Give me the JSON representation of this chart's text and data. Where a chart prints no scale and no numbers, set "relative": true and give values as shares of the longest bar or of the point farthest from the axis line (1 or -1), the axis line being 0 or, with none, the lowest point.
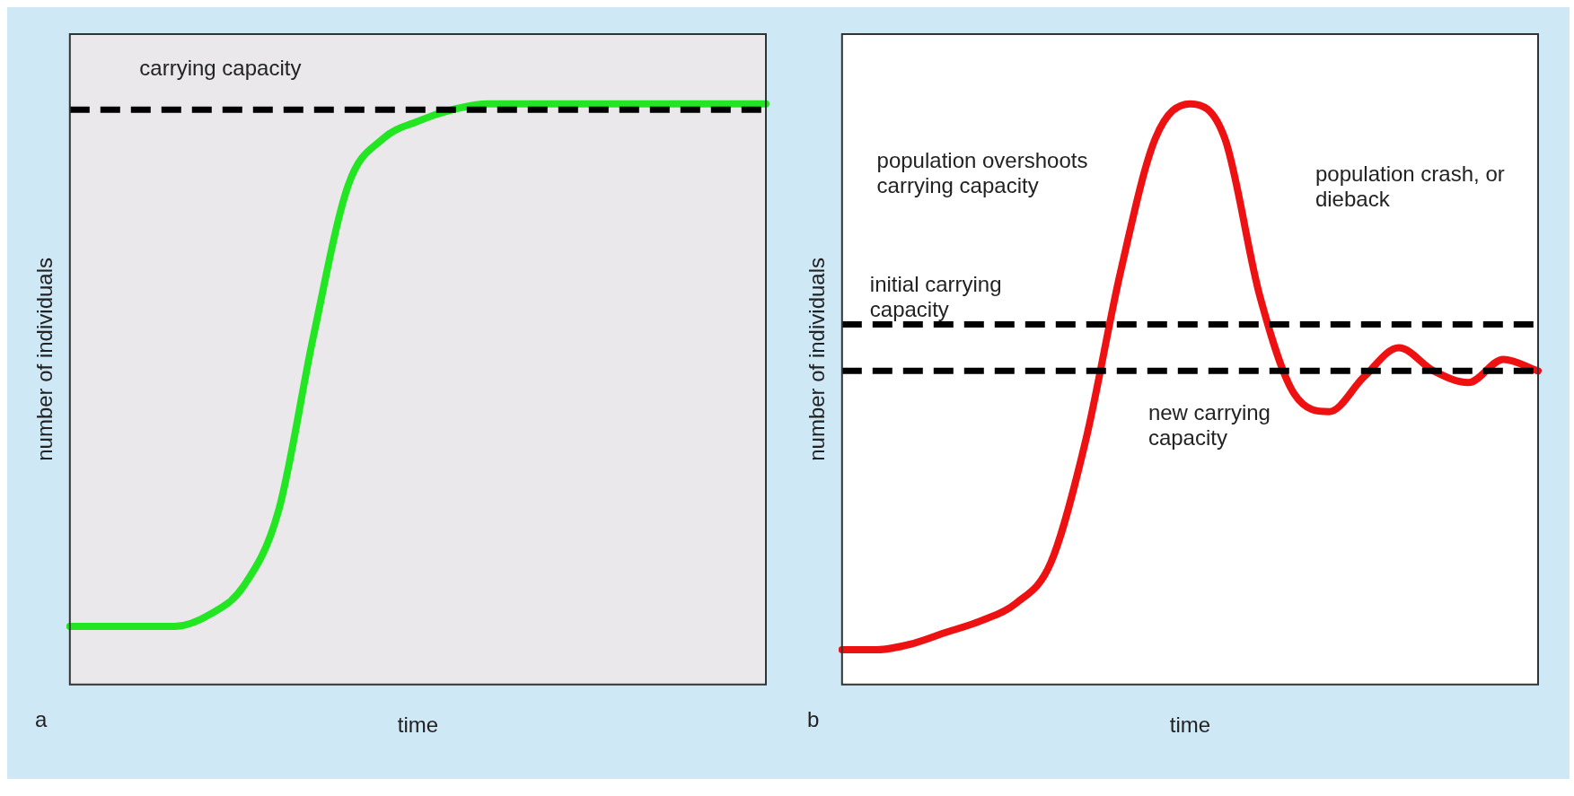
{
  "chart_data": [
    {
      "type": "line",
      "xlabel": "time",
      "ylabel": "number of individuals",
      "relative": true,
      "categories": [
        null,
        null,
        null,
        null,
        null,
        null,
        null,
        null,
        null,
        null,
        null,
        null,
        null,
        null,
        null,
        null,
        null,
        null,
        null,
        null,
        null
      ],
      "series": [
        {
          "color": "#22e622",
          "values": [
            0.1,
            0.1,
            0.1,
            0.1,
            0.12,
            0.17,
            0.3,
            0.6,
            0.86,
            0.94,
            0.97,
            0.99,
            1.0,
            1.0,
            1.0,
            1.0,
            1.0,
            1.0,
            1.0,
            1.0,
            1.0
          ]
        }
      ],
      "ref_lines": [
        {
          "axis": "y",
          "value": 0.99,
          "label": "carrying capacity",
          "line_style": "dashed",
          "color": "#000000"
        }
      ],
      "annotations": [
        "a"
      ],
      "grid": false,
      "legend": false,
      "marker": "none",
      "line_style": "solid"
    },
    {
      "type": "line",
      "xlabel": "time",
      "ylabel": "number of individuals",
      "relative": true,
      "categories": [
        null,
        null,
        null,
        null,
        null,
        null,
        null,
        null,
        null,
        null,
        null,
        null,
        null,
        null,
        null,
        null,
        null,
        null,
        null,
        null,
        null
      ],
      "series": [
        {
          "color": "#ee1111",
          "values": [
            0.06,
            0.06,
            0.07,
            0.09,
            0.11,
            0.14,
            0.21,
            0.42,
            0.71,
            0.94,
            1.0,
            0.94,
            0.67,
            0.5,
            0.47,
            0.53,
            0.58,
            0.54,
            0.52,
            0.56,
            0.54
          ]
        }
      ],
      "ref_lines": [
        {
          "axis": "y",
          "value": 0.62,
          "label": "initial carrying capacity",
          "line_style": "dashed",
          "color": "#000000"
        },
        {
          "axis": "y",
          "value": 0.54,
          "label": "new carrying capacity",
          "line_style": "dashed",
          "color": "#000000"
        }
      ],
      "annotations": [
        "population overshoots carrying capacity",
        "population crash, or dieback",
        "b"
      ],
      "grid": false,
      "legend": false,
      "marker": "none",
      "line_style": "solid"
    }
  ]
}
